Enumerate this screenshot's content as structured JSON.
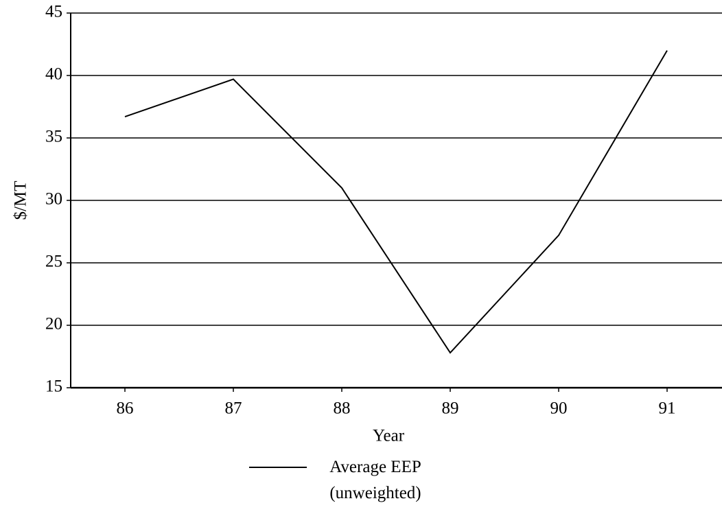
{
  "chart_data": {
    "type": "line",
    "x_label": "Year",
    "y_label": "$/MT",
    "categories": [
      "86",
      "87",
      "88",
      "89",
      "90",
      "91"
    ],
    "series": [
      {
        "name": "Average EEP (unweighted)",
        "color": "#000000",
        "values": [
          36.7,
          39.7,
          31,
          17.8,
          27.2,
          42
        ]
      }
    ],
    "ylim": [
      15,
      45
    ],
    "yticks": [
      15,
      20,
      25,
      30,
      35,
      40,
      45
    ],
    "grid": true
  }
}
